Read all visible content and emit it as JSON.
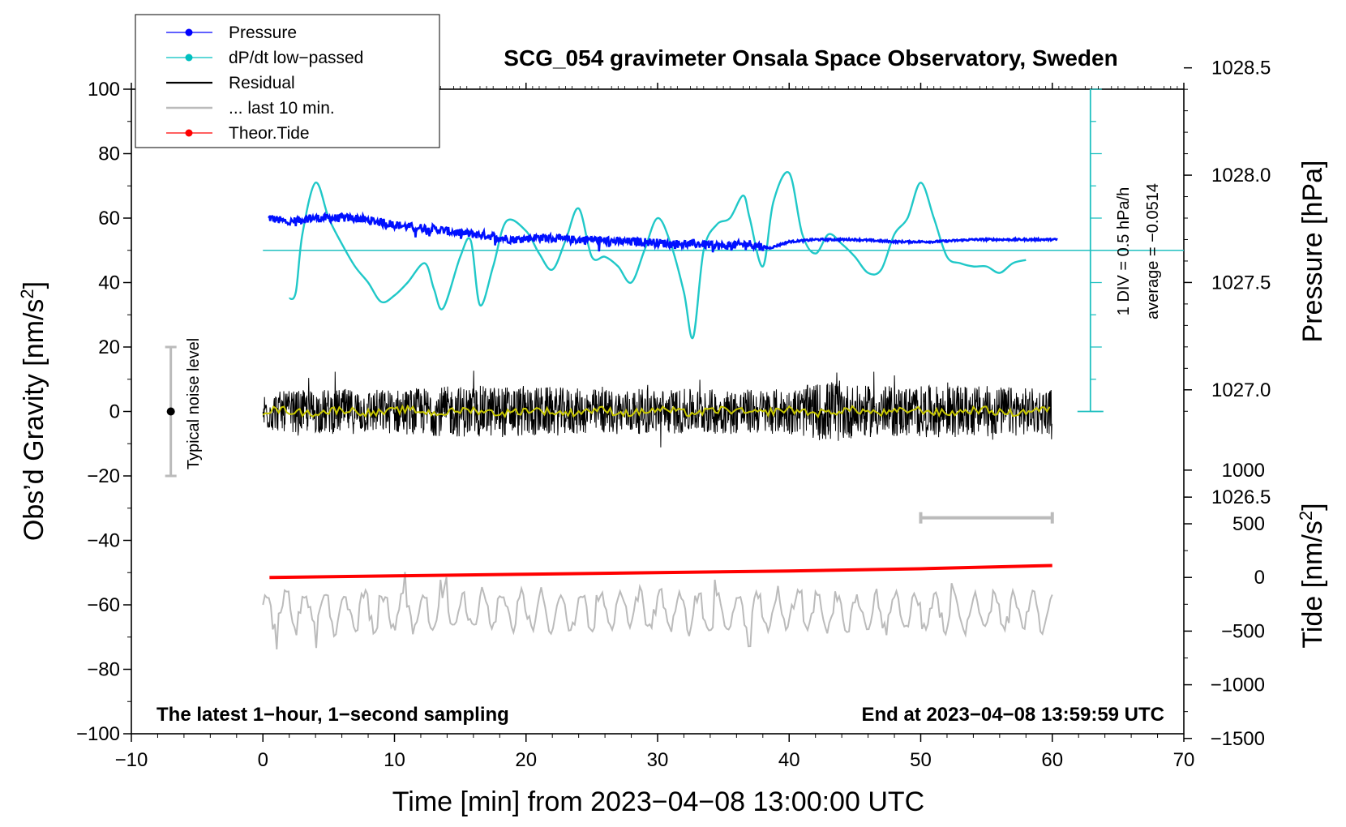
{
  "chart_data": {
    "type": "line",
    "title": "SCG_054 gravimeter Onsala Space Observatory, Sweden",
    "xlabel": "Time [min] from 2023−04−08 13:00:00 UTC",
    "ylabel_left": "Obs’d Gravity [nm/s",
    "ylabel_left_sup": "2",
    "ylabel_left_end": "]",
    "ylabel_pressure": "Pressure [hPa]",
    "ylabel_tide": "Tide [nm/s",
    "ylabel_tide_sup": "2",
    "ylabel_tide_end": "]",
    "xlim": [
      -10,
      70
    ],
    "ylim_left": [
      -100,
      100
    ],
    "x_ticks": [
      "−10",
      "0",
      "10",
      "20",
      "30",
      "40",
      "50",
      "60",
      "70"
    ],
    "y_ticks_left": [
      "100",
      "80",
      "60",
      "40",
      "20",
      "0",
      "−20",
      "−40",
      "−60",
      "−80",
      "−100"
    ],
    "pressure_ticks": [
      "1028.5",
      "1028.0",
      "1027.5",
      "1027.0",
      "1026.5"
    ],
    "tide_ticks": [
      "1000",
      "500",
      "0",
      "−500",
      "−1000",
      "−1500"
    ],
    "legend": [
      {
        "label": "Pressure",
        "color": "#0000ff",
        "marker": true
      },
      {
        "label": "dP/dt low−passed",
        "color": "#00c0c0",
        "marker": true
      },
      {
        "label": "Residual",
        "color": "#000000",
        "marker": false
      },
      {
        "label": "... last 10 min.",
        "color": "#bbbbbb",
        "marker": false
      },
      {
        "label": "Theor.Tide",
        "color": "#ff0000",
        "marker": true
      }
    ],
    "annotations": {
      "noise_label": "Typical noise level",
      "div_label": "1 DIV = 0.5 hPa/h",
      "average_label": "average = −0.0514",
      "bottom_left": "The latest 1−hour, 1−second sampling",
      "bottom_right": "End at 2023−04−08 13:59:59 UTC"
    },
    "pressure_hpa": {
      "x": [
        0.5,
        2,
        3.5,
        5,
        7,
        9,
        11,
        13,
        15,
        17,
        19,
        21,
        23,
        25,
        27,
        29,
        31,
        33,
        35,
        37,
        38.5,
        40,
        42,
        45,
        48,
        51,
        54,
        57,
        60
      ],
      "y": [
        1027.8,
        1027.78,
        1027.8,
        1027.8,
        1027.8,
        1027.78,
        1027.76,
        1027.75,
        1027.73,
        1027.72,
        1027.7,
        1027.71,
        1027.7,
        1027.7,
        1027.69,
        1027.69,
        1027.68,
        1027.68,
        1027.67,
        1027.68,
        1027.66,
        1027.69,
        1027.7,
        1027.7,
        1027.69,
        1027.69,
        1027.7,
        1027.7,
        1027.7
      ]
    },
    "dpdt_low_passed": {
      "x": [
        2,
        2.5,
        3,
        4,
        5,
        6,
        7,
        8,
        9,
        10,
        11,
        12.3,
        13,
        13.7,
        15,
        15.8,
        16.5,
        17.5,
        18.5,
        20,
        21,
        22,
        23,
        24,
        25,
        26,
        27,
        28,
        29,
        30,
        31,
        32,
        32.7,
        33.5,
        34.5,
        35.5,
        36.5,
        37,
        38,
        38.8,
        40,
        41,
        42,
        43,
        44,
        45,
        46,
        47,
        48,
        49,
        50,
        51,
        52,
        53,
        54,
        55,
        56,
        57,
        58
      ],
      "y": [
        35,
        37,
        55,
        71,
        60,
        52,
        45,
        40,
        34,
        36,
        40,
        46,
        38,
        32,
        48,
        53,
        33,
        45,
        59,
        56,
        49,
        44,
        53,
        63,
        48,
        48,
        45,
        40,
        50,
        60,
        52,
        37,
        23,
        50,
        58,
        60,
        67,
        60,
        45,
        65,
        74,
        55,
        49,
        55,
        52,
        48,
        43,
        44,
        55,
        60,
        71,
        60,
        48,
        46,
        45,
        45,
        43,
        46,
        47
      ]
    },
    "residual_envelope": {
      "x": [
        0,
        5,
        10,
        15,
        20,
        25,
        30,
        35,
        40,
        43.5,
        45,
        50,
        55,
        60
      ],
      "amplitude": [
        6,
        7,
        7,
        8,
        8,
        7,
        7,
        7,
        7,
        10,
        8,
        8,
        8,
        7
      ]
    },
    "theoretical_tide": {
      "x": [
        0.5,
        10,
        20,
        30,
        40,
        50,
        60
      ],
      "y": [
        -51.5,
        -51,
        -50.5,
        -50,
        -49.5,
        -48.8,
        -47.8
      ]
    },
    "noise_bar": {
      "x": -7,
      "low": -20,
      "high": 20,
      "center": 0
    },
    "ten_min_bar": {
      "x_start": 50,
      "x_end": 60,
      "y": -33
    }
  }
}
